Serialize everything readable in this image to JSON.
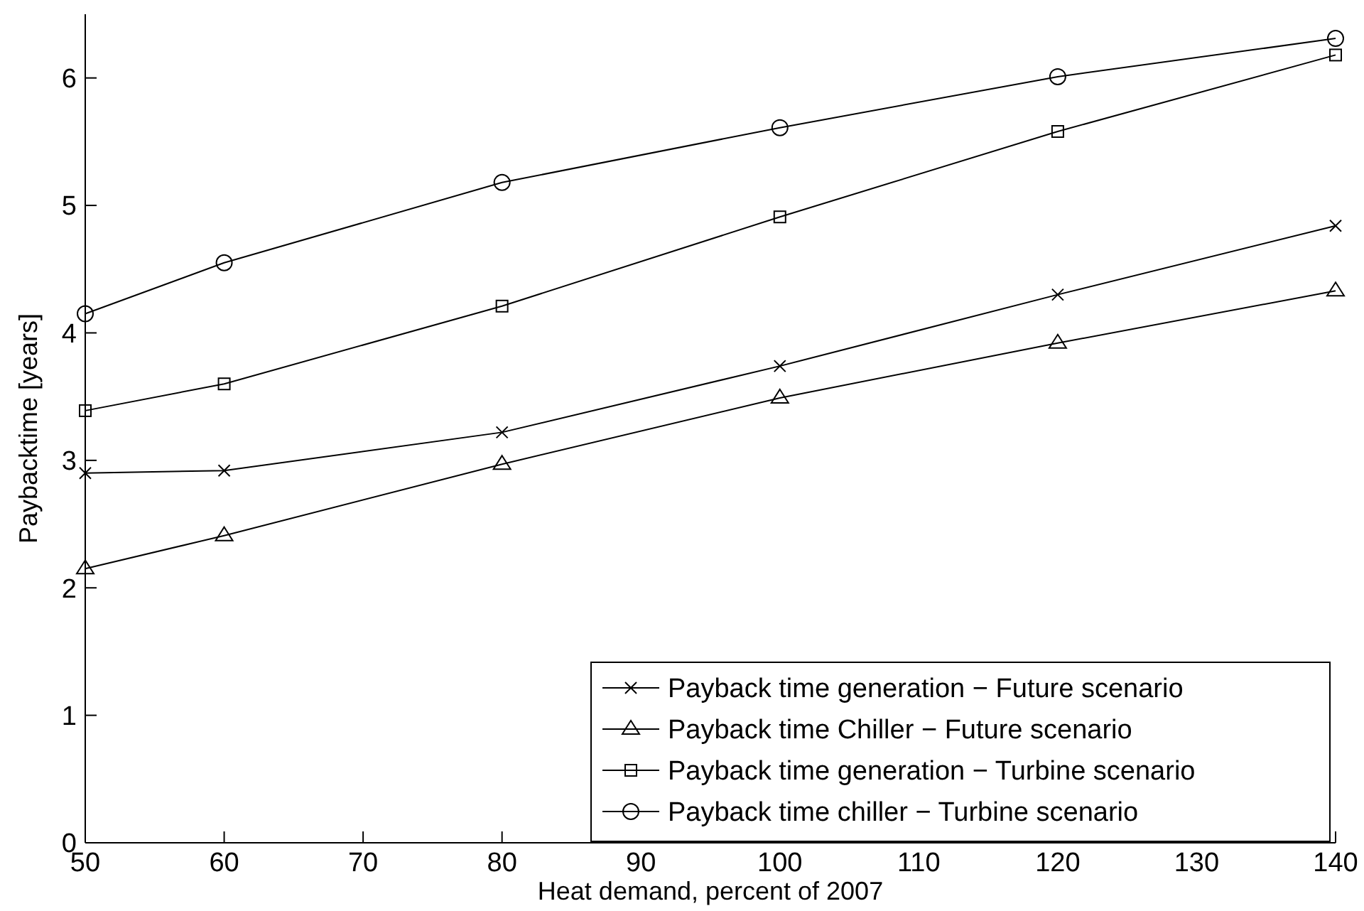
{
  "chart_data": {
    "type": "line",
    "xlabel": "Heat demand,  percent of 2007",
    "ylabel": "Paybacktime [years]",
    "x": [
      50,
      60,
      80,
      100,
      120,
      140
    ],
    "xlim": [
      50,
      140
    ],
    "xticks": [
      50,
      60,
      70,
      80,
      90,
      100,
      110,
      120,
      130,
      140
    ],
    "ylim": [
      0,
      6.5
    ],
    "yticks": [
      0,
      1,
      2,
      3,
      4,
      5,
      6
    ],
    "grid": false,
    "legend": "bottom right",
    "line_style": "solid",
    "series": [
      {
        "name": "Payback time generation − Future scenario",
        "color": "#000000",
        "marker": "cross",
        "values": [
          2.9,
          2.92,
          3.22,
          3.74,
          4.3,
          4.84
        ]
      },
      {
        "name": "Payback time Chiller − Future scenario",
        "color": "#000000",
        "marker": "triangle",
        "values": [
          2.15,
          2.41,
          2.97,
          3.49,
          3.92,
          4.33
        ]
      },
      {
        "name": "Payback time generation − Turbine scenario",
        "color": "#000000",
        "marker": "square",
        "values": [
          3.39,
          3.6,
          4.21,
          4.91,
          5.58,
          6.18
        ]
      },
      {
        "name": "Payback time chiller − Turbine scenario",
        "color": "#000000",
        "marker": "circle",
        "values": [
          4.15,
          4.55,
          5.18,
          5.61,
          6.01,
          6.31
        ]
      }
    ]
  }
}
